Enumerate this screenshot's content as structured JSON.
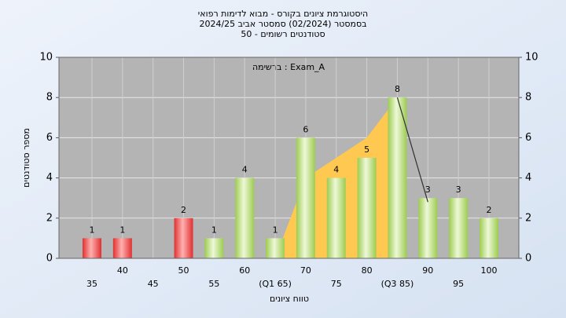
{
  "chart_data": {
    "type": "bar",
    "title": [
      "היסטוגרמת ציונים בקורס - מבוא לדימות רפואי",
      "בסמסטר  (02/2024)  סמסטר אביב 2024/25",
      "סטודנטים רשומים - 50"
    ],
    "annotation": "ברשימה : Exam_A",
    "x_label": "טווח ציונים",
    "y_label": "מספר סטודנטים",
    "categories": [
      "35",
      "40",
      "45",
      "50",
      "55",
      "60",
      "(Q1 65)",
      "70",
      "75",
      "80",
      "(Q3 85)",
      "90",
      "95",
      "100"
    ],
    "values": [
      1,
      1,
      0,
      2,
      1,
      4,
      1,
      6,
      4,
      5,
      8,
      3,
      3,
      2
    ],
    "colors": [
      "#e03030",
      "#e03030",
      "#e03030",
      "#e03030",
      "#9ccc50",
      "#9ccc50",
      "#9ccc50",
      "#9ccc50",
      "#9ccc50",
      "#9ccc50",
      "#9ccc50",
      "#9ccc50",
      "#9ccc50",
      "#9ccc50"
    ],
    "area": {
      "color": "#ffc850",
      "values": [
        null,
        null,
        null,
        null,
        null,
        null,
        0,
        4,
        5,
        6,
        8,
        null,
        null,
        null
      ]
    },
    "line": {
      "color": "#303030",
      "values": [
        null,
        null,
        null,
        null,
        null,
        null,
        null,
        null,
        null,
        null,
        8,
        2.8,
        null,
        null
      ]
    },
    "ylim": [
      0,
      10
    ],
    "yticks": [
      0,
      2,
      4,
      6,
      8,
      10
    ],
    "y2lim": [
      0,
      10
    ],
    "y2ticks": [
      0,
      2,
      4,
      6,
      8,
      10
    ],
    "grid": true
  }
}
